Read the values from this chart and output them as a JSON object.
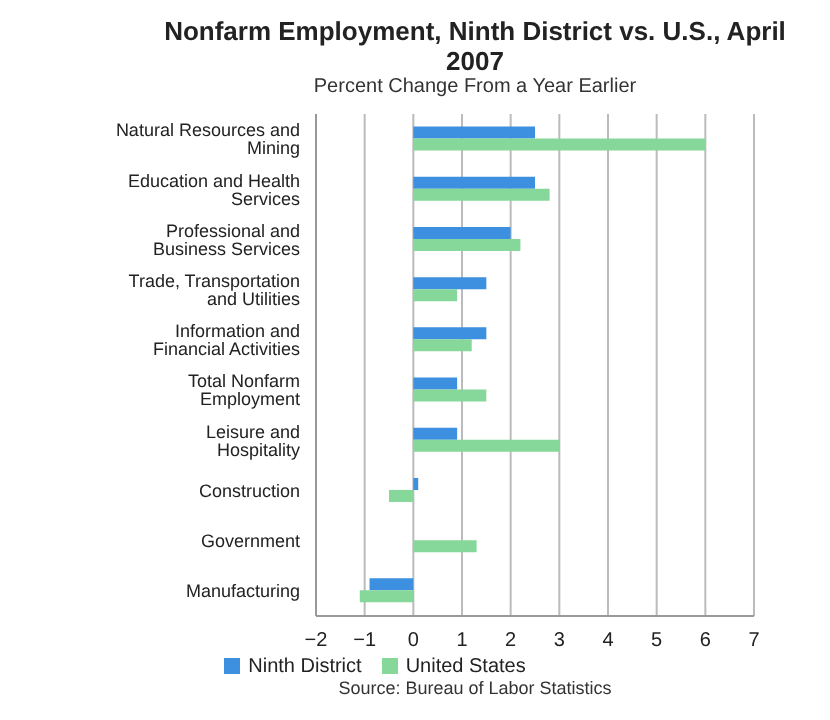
{
  "chart_data": {
    "type": "bar",
    "orientation": "horizontal",
    "title": "Nonfarm Employment, Ninth District vs. U.S., April 2007",
    "subtitle": "Percent Change From a Year Earlier",
    "categories": [
      "Natural Resources and Mining",
      "Education and Health Services",
      "Professional and Business Services",
      "Trade, Transportation and Utilities",
      "Information and Financial Activities",
      "Total Nonfarm Employment",
      "Leisure and Hospitality",
      "Construction",
      "Government",
      "Manufacturing"
    ],
    "series": [
      {
        "name": "Ninth District",
        "color": "#3d8fe0",
        "values": [
          2.5,
          2.5,
          2.0,
          1.5,
          1.5,
          0.9,
          0.9,
          0.1,
          0,
          -0.9
        ]
      },
      {
        "name": "United States",
        "color": "#85d79a",
        "values": [
          6.0,
          2.8,
          2.2,
          0.9,
          1.2,
          1.5,
          3.0,
          -0.5,
          1.3,
          -1.1
        ]
      }
    ],
    "xlim": [
      -2,
      7
    ],
    "xticks": [
      -2,
      -1,
      0,
      1,
      2,
      3,
      4,
      5,
      6,
      7
    ],
    "grid": "x",
    "legend": "bottom",
    "annotations": [
      "Source: Bureau of Labor Statistics"
    ]
  }
}
